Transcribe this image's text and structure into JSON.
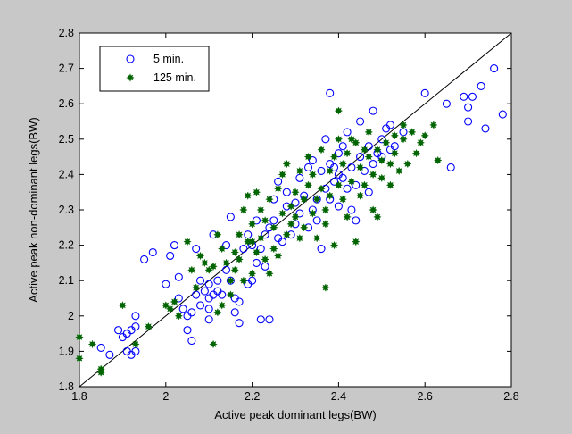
{
  "chart_data": {
    "type": "scatter",
    "title": "",
    "xlabel": "Active peak dominant legs(BW)",
    "ylabel": "Active peak non-dominant legs(BW)",
    "xlim": [
      1.8,
      2.8
    ],
    "ylim": [
      1.8,
      2.8
    ],
    "xticks": [
      "1.8",
      "2",
      "2.2",
      "2.4",
      "2.6",
      "2.8"
    ],
    "yticks": [
      "1.8",
      "1.9",
      "2",
      "2.1",
      "2.2",
      "2.3",
      "2.4",
      "2.5",
      "2.6",
      "2.7",
      "2.8"
    ],
    "grid": false,
    "legend_position": "top-left",
    "reference_line": "identity",
    "colors": {
      "figure_bg": "#c8c8c8",
      "axes_bg": "#ffffff",
      "series_5min": "#0000ff",
      "series_125min": "#006400",
      "reference_line": "#000000"
    },
    "series": [
      {
        "name": "5 min.",
        "marker": "open-circle",
        "color": "#0000ff",
        "points": [
          [
            1.85,
            1.91
          ],
          [
            1.87,
            1.89
          ],
          [
            1.89,
            1.96
          ],
          [
            1.9,
            1.94
          ],
          [
            1.91,
            1.95
          ],
          [
            1.91,
            1.9
          ],
          [
            1.92,
            1.96
          ],
          [
            1.92,
            1.89
          ],
          [
            1.93,
            1.97
          ],
          [
            1.93,
            1.9
          ],
          [
            1.93,
            2.0
          ],
          [
            1.95,
            2.16
          ],
          [
            1.97,
            2.18
          ],
          [
            2.0,
            2.09
          ],
          [
            2.01,
            2.17
          ],
          [
            2.02,
            2.2
          ],
          [
            2.03,
            2.11
          ],
          [
            2.03,
            2.05
          ],
          [
            2.04,
            2.02
          ],
          [
            2.05,
            1.96
          ],
          [
            2.05,
            2.0
          ],
          [
            2.06,
            2.01
          ],
          [
            2.06,
            1.93
          ],
          [
            2.07,
            2.06
          ],
          [
            2.07,
            2.19
          ],
          [
            2.08,
            2.1
          ],
          [
            2.08,
            2.03
          ],
          [
            2.09,
            2.07
          ],
          [
            2.1,
            2.05
          ],
          [
            2.1,
            1.99
          ],
          [
            2.1,
            2.02
          ],
          [
            2.1,
            2.09
          ],
          [
            2.11,
            2.06
          ],
          [
            2.11,
            2.23
          ],
          [
            2.12,
            2.1
          ],
          [
            2.12,
            2.07
          ],
          [
            2.13,
            2.06
          ],
          [
            2.14,
            2.13
          ],
          [
            2.14,
            2.2
          ],
          [
            2.15,
            2.28
          ],
          [
            2.15,
            2.1
          ],
          [
            2.16,
            2.01
          ],
          [
            2.16,
            2.05
          ],
          [
            2.17,
            1.98
          ],
          [
            2.17,
            2.04
          ],
          [
            2.18,
            2.19
          ],
          [
            2.19,
            2.09
          ],
          [
            2.19,
            2.23
          ],
          [
            2.2,
            2.1
          ],
          [
            2.2,
            2.2
          ],
          [
            2.21,
            2.15
          ],
          [
            2.21,
            2.27
          ],
          [
            2.22,
            1.99
          ],
          [
            2.22,
            2.19
          ],
          [
            2.23,
            2.23
          ],
          [
            2.23,
            2.14
          ],
          [
            2.24,
            1.99
          ],
          [
            2.24,
            2.25
          ],
          [
            2.25,
            2.33
          ],
          [
            2.25,
            2.27
          ],
          [
            2.26,
            2.22
          ],
          [
            2.26,
            2.38
          ],
          [
            2.27,
            2.21
          ],
          [
            2.28,
            2.31
          ],
          [
            2.28,
            2.35
          ],
          [
            2.29,
            2.23
          ],
          [
            2.3,
            2.26
          ],
          [
            2.3,
            2.32
          ],
          [
            2.31,
            2.29
          ],
          [
            2.31,
            2.39
          ],
          [
            2.32,
            2.34
          ],
          [
            2.33,
            2.25
          ],
          [
            2.33,
            2.42
          ],
          [
            2.34,
            2.3
          ],
          [
            2.34,
            2.44
          ],
          [
            2.35,
            2.27
          ],
          [
            2.35,
            2.33
          ],
          [
            2.36,
            2.41
          ],
          [
            2.36,
            2.19
          ],
          [
            2.37,
            2.36
          ],
          [
            2.37,
            2.5
          ],
          [
            2.38,
            2.33
          ],
          [
            2.38,
            2.43
          ],
          [
            2.38,
            2.63
          ],
          [
            2.39,
            2.42
          ],
          [
            2.39,
            2.38
          ],
          [
            2.4,
            2.4
          ],
          [
            2.4,
            2.31
          ],
          [
            2.4,
            2.46
          ],
          [
            2.41,
            2.48
          ],
          [
            2.41,
            2.39
          ],
          [
            2.42,
            2.36
          ],
          [
            2.42,
            2.52
          ],
          [
            2.43,
            2.3
          ],
          [
            2.43,
            2.42
          ],
          [
            2.44,
            2.27
          ],
          [
            2.44,
            2.37
          ],
          [
            2.45,
            2.55
          ],
          [
            2.45,
            2.45
          ],
          [
            2.46,
            2.41
          ],
          [
            2.47,
            2.35
          ],
          [
            2.47,
            2.48
          ],
          [
            2.48,
            2.43
          ],
          [
            2.48,
            2.58
          ],
          [
            2.49,
            2.46
          ],
          [
            2.5,
            2.5
          ],
          [
            2.5,
            2.45
          ],
          [
            2.51,
            2.53
          ],
          [
            2.52,
            2.47
          ],
          [
            2.52,
            2.54
          ],
          [
            2.53,
            2.48
          ],
          [
            2.55,
            2.52
          ],
          [
            2.6,
            2.63
          ],
          [
            2.65,
            2.6
          ],
          [
            2.66,
            2.42
          ],
          [
            2.69,
            2.62
          ],
          [
            2.7,
            2.59
          ],
          [
            2.7,
            2.55
          ],
          [
            2.71,
            2.62
          ],
          [
            2.73,
            2.65
          ],
          [
            2.74,
            2.53
          ],
          [
            2.76,
            2.7
          ],
          [
            2.78,
            2.57
          ]
        ]
      },
      {
        "name": "125 min.",
        "marker": "filled-star",
        "color": "#006400",
        "points": [
          [
            1.8,
            1.94
          ],
          [
            1.8,
            1.88
          ],
          [
            1.83,
            1.92
          ],
          [
            1.85,
            1.84
          ],
          [
            1.85,
            1.85
          ],
          [
            1.9,
            2.03
          ],
          [
            1.93,
            1.92
          ],
          [
            1.96,
            1.97
          ],
          [
            2.0,
            2.03
          ],
          [
            2.01,
            2.02
          ],
          [
            2.02,
            2.04
          ],
          [
            2.03,
            2.0
          ],
          [
            2.05,
            2.21
          ],
          [
            2.06,
            2.13
          ],
          [
            2.07,
            2.08
          ],
          [
            2.08,
            2.17
          ],
          [
            2.09,
            2.15
          ],
          [
            2.1,
            2.13
          ],
          [
            2.11,
            2.14
          ],
          [
            2.11,
            1.92
          ],
          [
            2.12,
            2.23
          ],
          [
            2.12,
            2.01
          ],
          [
            2.13,
            2.19
          ],
          [
            2.13,
            2.03
          ],
          [
            2.14,
            2.15
          ],
          [
            2.15,
            2.1
          ],
          [
            2.15,
            2.06
          ],
          [
            2.16,
            2.13
          ],
          [
            2.16,
            2.18
          ],
          [
            2.17,
            2.16
          ],
          [
            2.17,
            2.23
          ],
          [
            2.18,
            2.3
          ],
          [
            2.18,
            2.1
          ],
          [
            2.19,
            2.21
          ],
          [
            2.19,
            2.34
          ],
          [
            2.2,
            2.26
          ],
          [
            2.2,
            2.21
          ],
          [
            2.2,
            2.12
          ],
          [
            2.21,
            2.35
          ],
          [
            2.21,
            2.18
          ],
          [
            2.22,
            2.22
          ],
          [
            2.22,
            2.3
          ],
          [
            2.23,
            2.16
          ],
          [
            2.23,
            2.27
          ],
          [
            2.24,
            2.33
          ],
          [
            2.24,
            2.12
          ],
          [
            2.25,
            2.19
          ],
          [
            2.25,
            2.25
          ],
          [
            2.26,
            2.36
          ],
          [
            2.26,
            2.17
          ],
          [
            2.27,
            2.29
          ],
          [
            2.27,
            2.4
          ],
          [
            2.28,
            2.23
          ],
          [
            2.28,
            2.43
          ],
          [
            2.29,
            2.31
          ],
          [
            2.29,
            2.26
          ],
          [
            2.3,
            2.35
          ],
          [
            2.3,
            2.28
          ],
          [
            2.31,
            2.22
          ],
          [
            2.31,
            2.41
          ],
          [
            2.32,
            2.33
          ],
          [
            2.32,
            2.25
          ],
          [
            2.33,
            2.37
          ],
          [
            2.33,
            2.45
          ],
          [
            2.34,
            2.29
          ],
          [
            2.34,
            2.4
          ],
          [
            2.35,
            2.33
          ],
          [
            2.35,
            2.22
          ],
          [
            2.36,
            2.36
          ],
          [
            2.36,
            2.47
          ],
          [
            2.37,
            2.26
          ],
          [
            2.37,
            2.3
          ],
          [
            2.37,
            2.08
          ],
          [
            2.38,
            2.34
          ],
          [
            2.38,
            2.41
          ],
          [
            2.39,
            2.2
          ],
          [
            2.39,
            2.45
          ],
          [
            2.4,
            2.37
          ],
          [
            2.4,
            2.5
          ],
          [
            2.4,
            2.58
          ],
          [
            2.41,
            2.33
          ],
          [
            2.41,
            2.43
          ],
          [
            2.42,
            2.28
          ],
          [
            2.42,
            2.46
          ],
          [
            2.43,
            2.5
          ],
          [
            2.43,
            2.38
          ],
          [
            2.44,
            2.21
          ],
          [
            2.44,
            2.49
          ],
          [
            2.45,
            2.42
          ],
          [
            2.45,
            2.34
          ],
          [
            2.46,
            2.47
          ],
          [
            2.46,
            2.37
          ],
          [
            2.47,
            2.45
          ],
          [
            2.47,
            2.52
          ],
          [
            2.48,
            2.4
          ],
          [
            2.48,
            2.3
          ],
          [
            2.49,
            2.28
          ],
          [
            2.49,
            2.47
          ],
          [
            2.5,
            2.44
          ],
          [
            2.5,
            2.39
          ],
          [
            2.51,
            2.49
          ],
          [
            2.52,
            2.37
          ],
          [
            2.52,
            2.43
          ],
          [
            2.53,
            2.51
          ],
          [
            2.53,
            2.46
          ],
          [
            2.54,
            2.41
          ],
          [
            2.55,
            2.54
          ],
          [
            2.55,
            2.5
          ],
          [
            2.56,
            2.43
          ],
          [
            2.57,
            2.52
          ],
          [
            2.58,
            2.46
          ],
          [
            2.59,
            2.49
          ],
          [
            2.6,
            2.51
          ],
          [
            2.62,
            2.54
          ],
          [
            2.63,
            2.44
          ]
        ]
      }
    ]
  }
}
